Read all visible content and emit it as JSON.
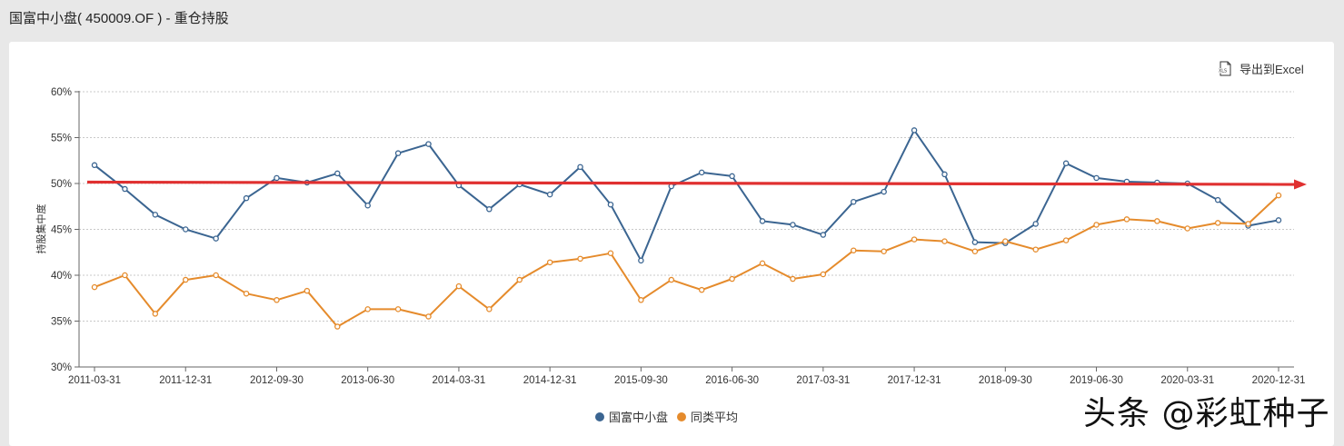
{
  "header": {
    "title": "国富中小盘( 450009.OF ) - 重仓持股"
  },
  "toolbar": {
    "export_label": "导出到Excel",
    "export_icon": "xls-file-icon"
  },
  "legend": {
    "items": [
      {
        "label": "国富中小盘",
        "color": "#3b6591"
      },
      {
        "label": "同类平均",
        "color": "#e58b2c"
      }
    ]
  },
  "watermark": "头条 @彩虹种子",
  "annotation": {
    "type": "red-arrow",
    "color": "#e03030",
    "level": 50.1
  },
  "chart_data": {
    "type": "line",
    "title": "国富中小盘( 450009.OF ) - 重仓持股",
    "xlabel": "",
    "ylabel": "持股集中度",
    "ylim": [
      30,
      60
    ],
    "yticks": [
      "30%",
      "35%",
      "40%",
      "45%",
      "50%",
      "55%",
      "60%"
    ],
    "xticks": [
      "2011-03-31",
      "2011-12-31",
      "2012-09-30",
      "2013-06-30",
      "2014-03-31",
      "2014-12-31",
      "2015-09-30",
      "2016-06-30",
      "2017-03-31",
      "2017-12-31",
      "2018-09-30",
      "2019-06-30",
      "2020-03-31",
      "2020-12-31"
    ],
    "grid": true,
    "legend_position": "bottom",
    "x": [
      "2011-03-31",
      "2011-06-30",
      "2011-09-30",
      "2011-12-31",
      "2012-03-31",
      "2012-06-30",
      "2012-09-30",
      "2012-12-31",
      "2013-03-31",
      "2013-06-30",
      "2013-09-30",
      "2013-12-31",
      "2014-03-31",
      "2014-06-30",
      "2014-09-30",
      "2014-12-31",
      "2015-03-31",
      "2015-06-30",
      "2015-09-30",
      "2015-12-31",
      "2016-03-31",
      "2016-06-30",
      "2016-09-30",
      "2016-12-31",
      "2017-03-31",
      "2017-06-30",
      "2017-09-30",
      "2017-12-31",
      "2018-03-31",
      "2018-06-30",
      "2018-09-30",
      "2018-12-31",
      "2019-03-31",
      "2019-06-30",
      "2019-09-30",
      "2019-12-31",
      "2020-03-31",
      "2020-06-30",
      "2020-09-30",
      "2020-12-31"
    ],
    "series": [
      {
        "name": "国富中小盘",
        "color": "#3b6591",
        "values": [
          52.0,
          49.4,
          46.6,
          45.0,
          44.0,
          48.4,
          50.6,
          50.1,
          51.1,
          47.6,
          53.3,
          54.3,
          49.8,
          47.2,
          49.9,
          48.8,
          51.8,
          47.7,
          41.6,
          49.7,
          51.2,
          50.8,
          45.9,
          45.5,
          44.4,
          48.0,
          49.1,
          55.8,
          51.0,
          43.6,
          43.5,
          45.6,
          52.2,
          50.6,
          50.2,
          50.1,
          50.0,
          48.2,
          45.4,
          46.0
        ]
      },
      {
        "name": "同类平均",
        "color": "#e58b2c",
        "values": [
          38.7,
          40.0,
          35.8,
          39.5,
          40.0,
          38.0,
          37.3,
          38.3,
          34.4,
          36.3,
          36.3,
          35.5,
          38.8,
          36.3,
          39.5,
          41.4,
          41.8,
          42.4,
          37.3,
          39.5,
          38.4,
          39.6,
          41.3,
          39.6,
          40.1,
          42.7,
          42.6,
          43.9,
          43.7,
          42.6,
          43.7,
          42.8,
          43.8,
          45.5,
          46.1,
          45.9,
          45.1,
          45.7,
          45.6,
          48.7
        ]
      }
    ]
  }
}
